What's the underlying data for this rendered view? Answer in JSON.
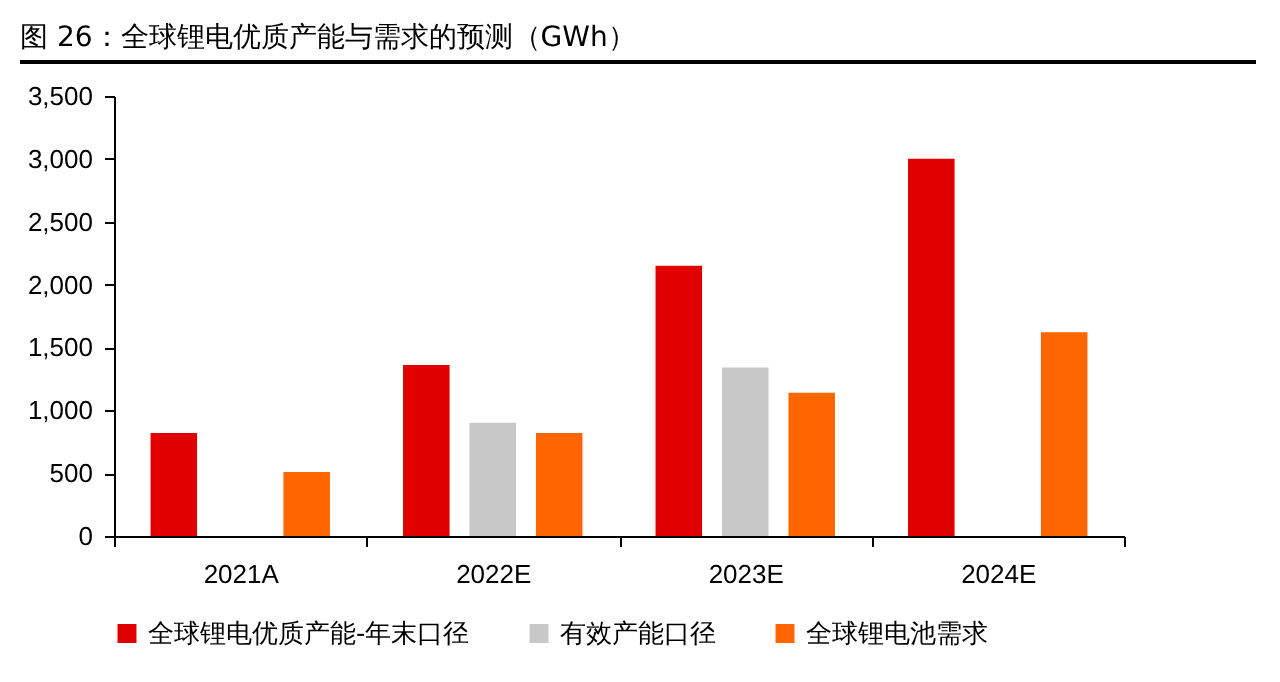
{
  "chart_data": {
    "type": "bar",
    "title": "图 26：全球锂电优质产能与需求的预测（GWh）",
    "categories": [
      "2021A",
      "2022E",
      "2023E",
      "2024E"
    ],
    "series": [
      {
        "name": "全球锂电优质产能-年末口径",
        "color": "#e00000",
        "values": [
          820,
          1360,
          2150,
          3000
        ]
      },
      {
        "name": "有效产能口径",
        "color": "#c8c8c8",
        "values": [
          null,
          900,
          1340,
          null
        ]
      },
      {
        "name": "全球锂电池需求",
        "color": "#ff6600",
        "values": [
          510,
          820,
          1140,
          1620
        ]
      }
    ],
    "ylim": [
      0,
      3500
    ],
    "yticks": [
      {
        "value": 0,
        "label": "0"
      },
      {
        "value": 500,
        "label": "500"
      },
      {
        "value": 1000,
        "label": "1,000"
      },
      {
        "value": 1500,
        "label": "1,500"
      },
      {
        "value": 2000,
        "label": "2,000"
      },
      {
        "value": 2500,
        "label": "2,500"
      },
      {
        "value": 3000,
        "label": "3,000"
      },
      {
        "value": 3500,
        "label": "3,500"
      }
    ],
    "grid": false,
    "legend": "bottom"
  }
}
